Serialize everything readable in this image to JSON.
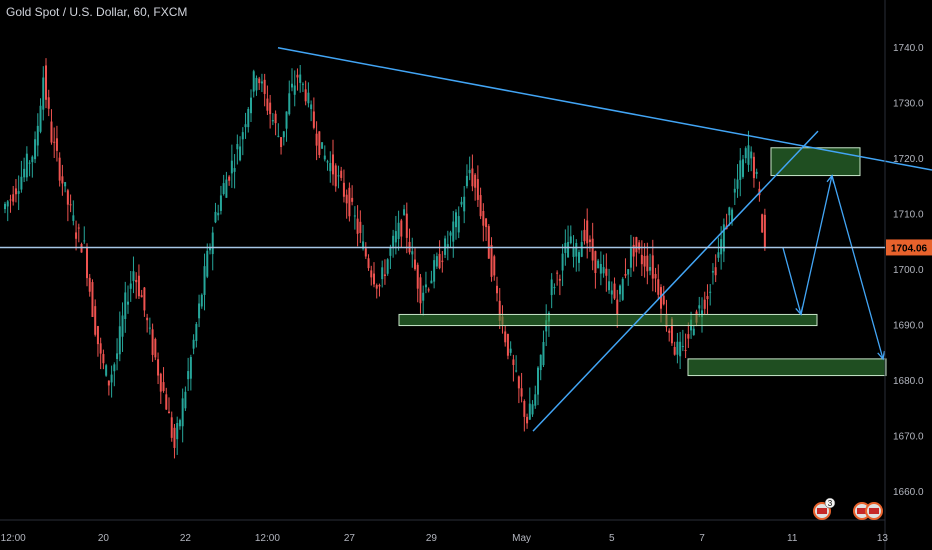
{
  "title": "Gold Spot / U.S. Dollar, 60, FXCM",
  "chart_data": {
    "type": "candlestick",
    "instrument": "Gold Spot / U.S. Dollar",
    "timeframe": "60",
    "source": "FXCM",
    "ylim": [
      1655,
      1745
    ],
    "y_ticks": [
      1660,
      1670,
      1680,
      1690,
      1700,
      1710,
      1720,
      1730,
      1740
    ],
    "x_ticks": [
      {
        "label": "12:00",
        "i": 1
      },
      {
        "label": "20",
        "i": 12
      },
      {
        "label": "22",
        "i": 22
      },
      {
        "label": "12:00",
        "i": 32
      },
      {
        "label": "27",
        "i": 42
      },
      {
        "label": "29",
        "i": 52
      },
      {
        "label": "May",
        "i": 63
      },
      {
        "label": "5",
        "i": 74
      },
      {
        "label": "7",
        "i": 85
      },
      {
        "label": "11",
        "i": 96
      },
      {
        "label": "13",
        "i": 107
      }
    ],
    "last_price": "1704.06",
    "last_price_value": 1704.06,
    "closes": [
      1713,
      1716,
      1719,
      1722,
      1735,
      1724,
      1718,
      1712,
      1707,
      1704,
      1693,
      1684,
      1680,
      1685,
      1694,
      1700,
      1695,
      1688,
      1682,
      1676,
      1668,
      1676,
      1684,
      1693,
      1702,
      1710,
      1715,
      1719,
      1723,
      1730,
      1736,
      1731,
      1727,
      1723,
      1731,
      1735,
      1732,
      1726,
      1721,
      1719,
      1716,
      1713,
      1709,
      1704,
      1700,
      1697,
      1702,
      1706,
      1709,
      1702,
      1696,
      1698,
      1701,
      1704,
      1707,
      1712,
      1718,
      1713,
      1706,
      1698,
      1690,
      1684,
      1678,
      1673,
      1677,
      1688,
      1697,
      1700,
      1705,
      1703,
      1707,
      1702,
      1700,
      1697,
      1694,
      1700,
      1704,
      1702,
      1701,
      1697,
      1691,
      1686,
      1685,
      1690,
      1693,
      1696,
      1701,
      1707,
      1712,
      1718,
      1722,
      1716,
      1704
    ],
    "annotations": {
      "resistance_line": {
        "from": [
          278,
          1740
        ],
        "to": [
          932,
          1718
        ]
      },
      "rising_line": {
        "from": [
          533,
          1671
        ],
        "to": [
          818,
          1725
        ]
      },
      "zones": [
        {
          "name": "supply-zone",
          "x0": 771,
          "x1": 860,
          "y0": 1717,
          "y1": 1722
        },
        {
          "name": "support-zone",
          "x0": 399,
          "x1": 817,
          "y0": 1690,
          "y1": 1692
        },
        {
          "name": "target-zone",
          "x0": 688,
          "x1": 886,
          "y0": 1681,
          "y1": 1684
        }
      ],
      "path": [
        [
          783,
          1704
        ],
        [
          801,
          1692
        ],
        [
          832,
          1717
        ],
        [
          883,
          1684
        ]
      ]
    },
    "events_icons": [
      "us-flag-icon",
      "us-flag-icon"
    ],
    "events_count": "3"
  },
  "colors": {
    "up": "#26a69a",
    "down": "#ef5350",
    "line": "#42a5f5",
    "zone_fill": "rgba(56,142,60,0.55)",
    "zone_stroke": "#c8e6c9",
    "price_line": "#a7c7e7",
    "price_tag": "#e8622c"
  }
}
